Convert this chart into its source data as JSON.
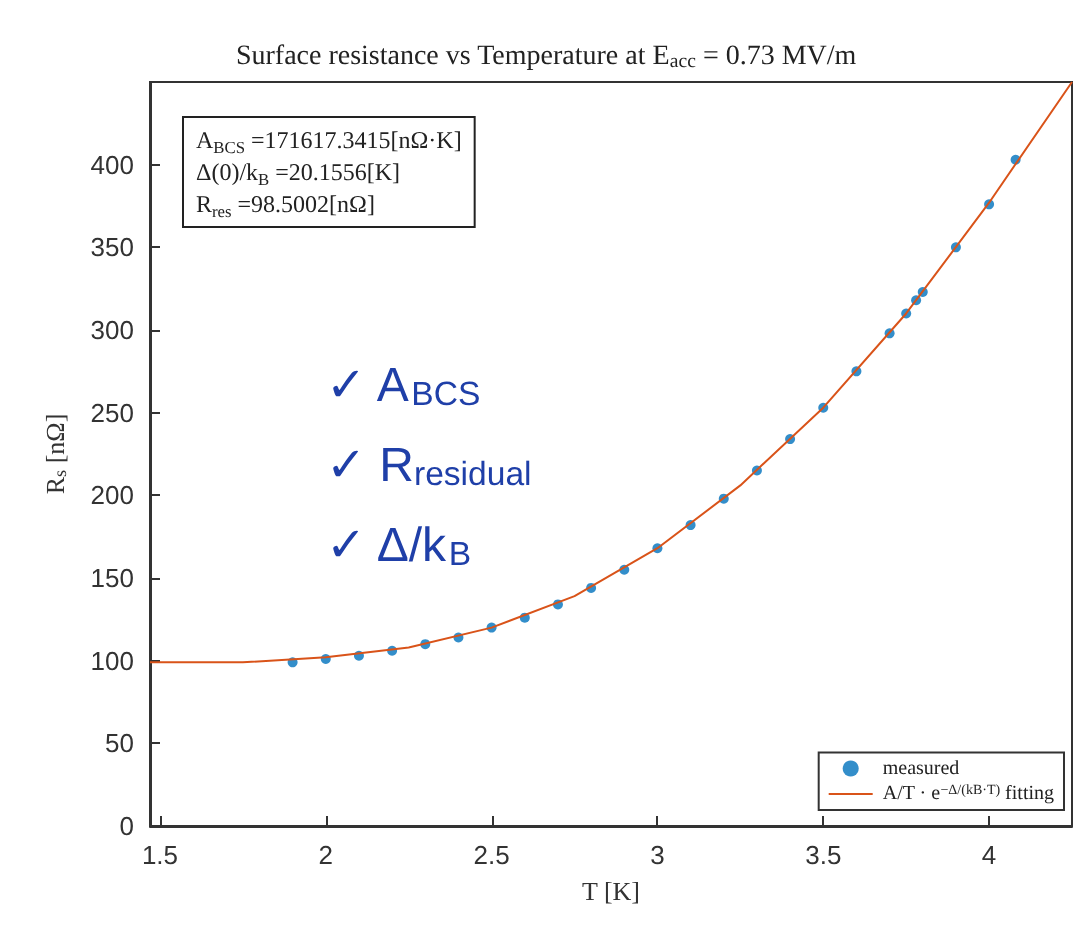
{
  "chart_data": {
    "type": "scatter",
    "title": "Surface resistance vs Temperature at E$_{acc}$ = 0.73 MV/m",
    "xlabel": "T [K]",
    "ylabel": "R$_{s}$ [nΩ]",
    "annotations": [
      "A$_{BCS}$ =171617.3415[nΩ·K]",
      "Δ(0)/k$_{B}$ =20.1556[K]",
      "R$_{res}$ =98.5002[nΩ]",
      "✓ A$_{BCS}$",
      "✓ R$_{residual}$",
      "✓ Δ/k$_{B}$"
    ],
    "xlim": [
      1.47,
      4.25
    ],
    "xticks": [
      1.5,
      2,
      2.5,
      3,
      3.5,
      4
    ],
    "ylim": [
      0,
      450
    ],
    "yticks": [
      0,
      50,
      100,
      150,
      200,
      250,
      300,
      350,
      400
    ],
    "grid": false,
    "legend": "bottom right",
    "series": [
      {
        "name": "measured",
        "marker": "circle",
        "color": "#0072bd",
        "x": [
          1.9,
          2.0,
          2.1,
          2.2,
          2.3,
          2.4,
          2.5,
          2.6,
          2.7,
          2.8,
          2.9,
          3.0,
          3.1,
          3.2,
          3.3,
          3.4,
          3.5,
          3.6,
          3.7,
          3.75,
          3.78,
          3.8,
          3.9,
          4.0,
          4.08
        ],
        "values": [
          99,
          101,
          103,
          106,
          110,
          114,
          120,
          126,
          134,
          144,
          155,
          168,
          182,
          198,
          215,
          234,
          253,
          275,
          298,
          310,
          318,
          323,
          350,
          376,
          403
        ]
      },
      {
        "name": "A/T · e$^{−Δ/(kB·T)}$ fitting",
        "type": "line",
        "marker": "none",
        "color": "#d95319",
        "x": [
          1.47,
          1.75,
          2.0,
          2.25,
          2.5,
          2.75,
          3.0,
          3.25,
          3.5,
          3.75,
          4.0,
          4.25
        ],
        "values": [
          99,
          99,
          102,
          108,
          120,
          139,
          168,
          206,
          253,
          310,
          377,
          450
        ]
      }
    ]
  }
}
